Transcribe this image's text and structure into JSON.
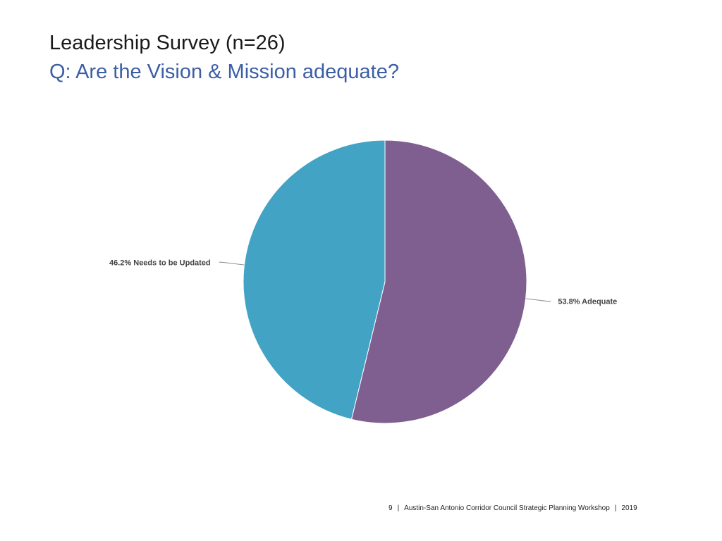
{
  "slide": {
    "title": "Leadership Survey (n=26)",
    "subtitle": "Q: Are the Vision & Mission adequate?"
  },
  "chart_data": {
    "type": "pie",
    "slices": [
      {
        "label": "Adequate",
        "value": 53.8,
        "display": "53.8% Adequate",
        "color": "#7e5f90"
      },
      {
        "label": "Needs to be Updated",
        "value": 46.2,
        "display": "46.2% Needs to be Updated",
        "color": "#42a3c5"
      }
    ],
    "start_angle_deg": 0,
    "direction": "clockwise"
  },
  "footer": {
    "page_number": "9",
    "separator": "|",
    "text": "Austin-San Antonio Corridor Council Strategic Planning Workshop",
    "year": "2019"
  }
}
